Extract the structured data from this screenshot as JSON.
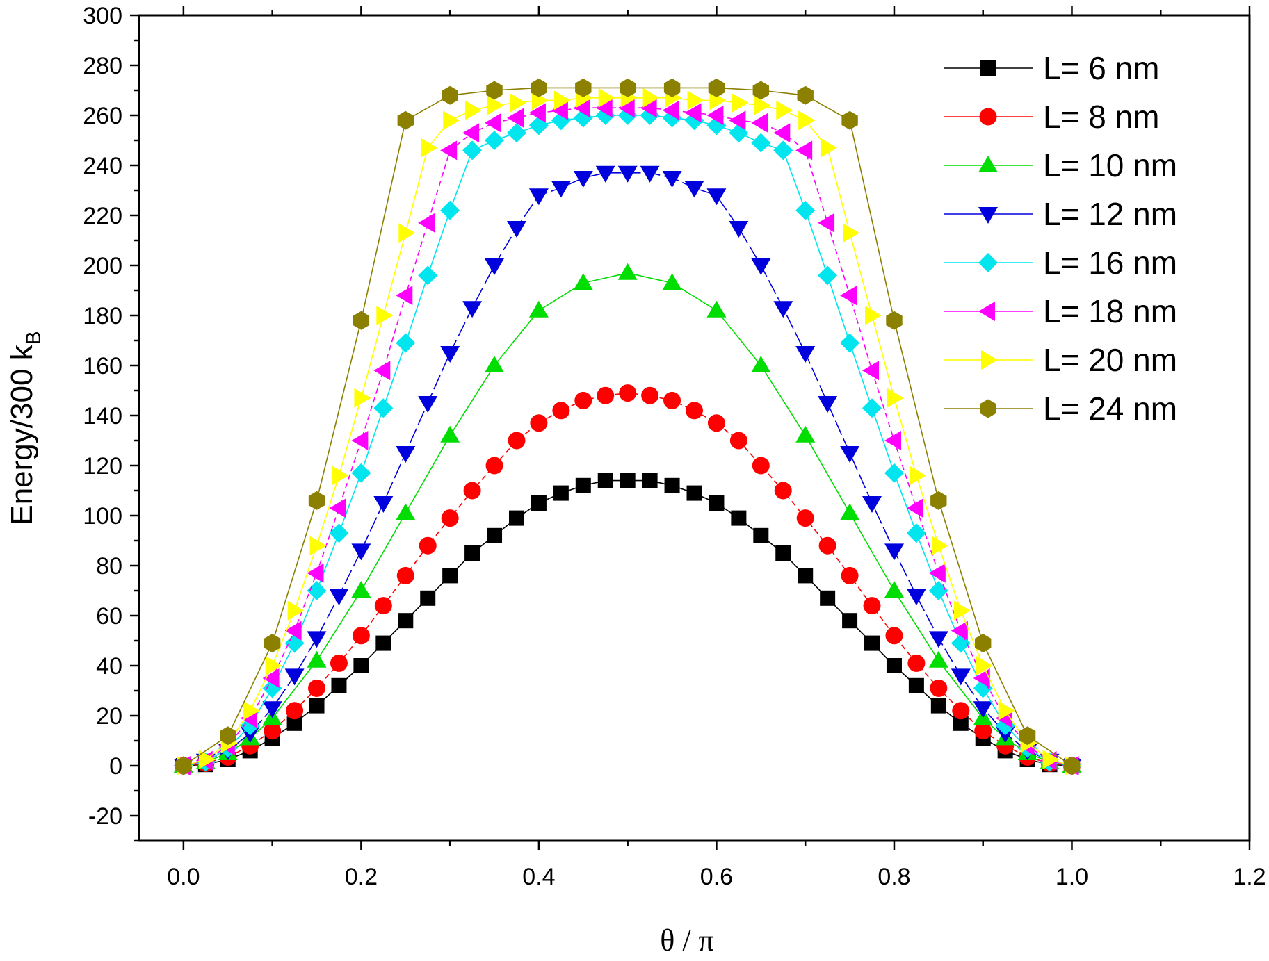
{
  "chart_data": {
    "type": "line",
    "title": "",
    "xlabel": "θ / π",
    "ylabel": "Energy/300 k",
    "ylabel_subscript": "B",
    "xlim": [
      -0.05,
      1.2
    ],
    "ylim": [
      -30,
      300
    ],
    "xticks": [
      "0.0",
      "0.2",
      "0.4",
      "0.6",
      "0.8",
      "1.0",
      "1.2"
    ],
    "yticks": [
      "-20",
      "0",
      "20",
      "40",
      "60",
      "80",
      "100",
      "120",
      "140",
      "160",
      "180",
      "200",
      "220",
      "240",
      "260",
      "280",
      "300"
    ],
    "legend_position": "top-right",
    "series": [
      {
        "name": "L= 6 nm",
        "color": "#000000",
        "marker": "square",
        "dash": "",
        "x": [
          0,
          0.025,
          0.05,
          0.075,
          0.1,
          0.125,
          0.15,
          0.175,
          0.2,
          0.225,
          0.25,
          0.275,
          0.3,
          0.325,
          0.35,
          0.375,
          0.4,
          0.425,
          0.45,
          0.475,
          0.5,
          0.525,
          0.55,
          0.575,
          0.6,
          0.625,
          0.65,
          0.675,
          0.7,
          0.725,
          0.75,
          0.775,
          0.8,
          0.825,
          0.85,
          0.875,
          0.9,
          0.925,
          0.95,
          0.975,
          1.0
        ],
        "y": [
          0,
          0.5,
          2.5,
          6,
          11,
          17,
          24,
          32,
          40,
          49,
          58,
          67,
          76,
          85,
          92,
          99,
          105,
          109,
          112,
          114,
          114,
          114,
          112,
          109,
          105,
          99,
          92,
          85,
          76,
          67,
          58,
          49,
          40,
          32,
          24,
          17,
          11,
          6,
          2.5,
          0.5,
          0
        ]
      },
      {
        "name": "L= 8 nm",
        "color": "#ff0000",
        "marker": "circle",
        "dash": "8,5",
        "x": [
          0,
          0.025,
          0.05,
          0.075,
          0.1,
          0.125,
          0.15,
          0.175,
          0.2,
          0.225,
          0.25,
          0.275,
          0.3,
          0.325,
          0.35,
          0.375,
          0.4,
          0.425,
          0.45,
          0.475,
          0.5,
          0.525,
          0.55,
          0.575,
          0.6,
          0.625,
          0.65,
          0.675,
          0.7,
          0.725,
          0.75,
          0.775,
          0.8,
          0.825,
          0.85,
          0.875,
          0.9,
          0.925,
          0.95,
          0.975,
          1.0
        ],
        "y": [
          0,
          1,
          3.5,
          8,
          14,
          22,
          31,
          41,
          52,
          64,
          76,
          88,
          99,
          110,
          120,
          130,
          137,
          142,
          146,
          148,
          149,
          148,
          146,
          142,
          137,
          130,
          120,
          110,
          99,
          88,
          76,
          64,
          52,
          41,
          31,
          22,
          14,
          8,
          3.5,
          1,
          0
        ]
      },
      {
        "name": "L= 10 nm",
        "color": "#00dd00",
        "marker": "triangle-up",
        "dash": "",
        "x": [
          0,
          0.025,
          0.05,
          0.075,
          0.1,
          0.15,
          0.2,
          0.25,
          0.3,
          0.35,
          0.4,
          0.45,
          0.5,
          0.55,
          0.6,
          0.65,
          0.7,
          0.75,
          0.8,
          0.85,
          0.9,
          0.925,
          0.95,
          0.975,
          1.0
        ],
        "y": [
          0,
          1.5,
          5,
          11,
          19,
          42,
          70,
          101,
          132,
          160,
          182,
          193,
          197,
          193,
          182,
          160,
          132,
          101,
          70,
          42,
          19,
          11,
          5,
          1.5,
          0
        ]
      },
      {
        "name": "L= 12 nm",
        "color": "#0000dd",
        "marker": "triangle-down",
        "dash": "22,6",
        "x": [
          0,
          0.025,
          0.05,
          0.075,
          0.1,
          0.125,
          0.15,
          0.175,
          0.2,
          0.225,
          0.25,
          0.275,
          0.3,
          0.325,
          0.35,
          0.375,
          0.4,
          0.425,
          0.45,
          0.475,
          0.5,
          0.525,
          0.55,
          0.575,
          0.6,
          0.625,
          0.65,
          0.675,
          0.7,
          0.725,
          0.75,
          0.775,
          0.8,
          0.825,
          0.85,
          0.875,
          0.9,
          0.925,
          0.95,
          0.975,
          1.0
        ],
        "y": [
          0,
          2,
          6,
          13,
          23,
          36,
          51,
          68,
          86,
          105,
          125,
          145,
          165,
          183,
          200,
          215,
          228,
          231,
          235,
          237,
          237,
          237,
          235,
          231,
          228,
          215,
          200,
          183,
          165,
          145,
          125,
          105,
          86,
          68,
          51,
          36,
          23,
          13,
          6,
          2,
          0
        ]
      },
      {
        "name": "L= 16 nm",
        "color": "#00e5ee",
        "marker": "diamond",
        "dash": "",
        "x": [
          0,
          0.025,
          0.05,
          0.075,
          0.1,
          0.125,
          0.15,
          0.175,
          0.2,
          0.225,
          0.25,
          0.275,
          0.3,
          0.325,
          0.35,
          0.375,
          0.4,
          0.425,
          0.45,
          0.475,
          0.5,
          0.525,
          0.55,
          0.575,
          0.6,
          0.625,
          0.65,
          0.675,
          0.7,
          0.725,
          0.75,
          0.775,
          0.8,
          0.825,
          0.85,
          0.875,
          0.9,
          0.925,
          0.95,
          0.975,
          1.0
        ],
        "y": [
          0,
          1.5,
          7,
          16,
          31,
          49,
          70,
          93,
          117,
          143,
          169,
          196,
          222,
          246,
          250,
          253,
          256,
          258,
          259,
          260,
          260,
          260,
          259,
          258,
          256,
          253,
          249,
          246,
          222,
          196,
          169,
          143,
          117,
          93,
          70,
          49,
          31,
          16,
          7,
          1.5,
          0
        ]
      },
      {
        "name": "L= 18 nm",
        "color": "#ff00ff",
        "marker": "triangle-left",
        "dash": "8,5",
        "x": [
          0,
          0.025,
          0.05,
          0.075,
          0.1,
          0.125,
          0.15,
          0.175,
          0.2,
          0.225,
          0.25,
          0.275,
          0.3,
          0.325,
          0.35,
          0.375,
          0.4,
          0.425,
          0.45,
          0.475,
          0.5,
          0.525,
          0.55,
          0.575,
          0.6,
          0.625,
          0.65,
          0.675,
          0.7,
          0.725,
          0.75,
          0.775,
          0.8,
          0.825,
          0.85,
          0.875,
          0.9,
          0.925,
          0.95,
          0.975,
          1.0
        ],
        "y": [
          0,
          2,
          8,
          19,
          35,
          54,
          77,
          103,
          130,
          158,
          188,
          217,
          246,
          253,
          257,
          259,
          261,
          262,
          263,
          263,
          263,
          263,
          262,
          261,
          260,
          258,
          257,
          253,
          246,
          217,
          188,
          158,
          130,
          103,
          77,
          54,
          35,
          19,
          8,
          2,
          0
        ]
      },
      {
        "name": "L= 20 nm",
        "color": "#ffff00",
        "marker": "triangle-right",
        "dash": "",
        "x": [
          0,
          0.025,
          0.05,
          0.075,
          0.1,
          0.125,
          0.15,
          0.175,
          0.2,
          0.225,
          0.25,
          0.275,
          0.3,
          0.325,
          0.35,
          0.375,
          0.4,
          0.425,
          0.45,
          0.475,
          0.5,
          0.525,
          0.55,
          0.575,
          0.6,
          0.625,
          0.65,
          0.675,
          0.7,
          0.725,
          0.75,
          0.775,
          0.8,
          0.825,
          0.85,
          0.875,
          0.9,
          0.925,
          0.95,
          0.975,
          1.0
        ],
        "y": [
          0,
          2.5,
          9,
          22,
          40,
          62,
          88,
          116,
          147,
          180,
          213,
          247,
          258,
          262,
          264,
          265,
          266,
          266,
          267,
          267,
          267,
          267,
          267,
          266,
          266,
          265,
          264,
          262,
          258,
          247,
          213,
          180,
          147,
          116,
          88,
          62,
          40,
          22,
          9,
          2.5,
          0
        ]
      },
      {
        "name": "L= 24 nm",
        "color": "#8b8000",
        "marker": "hexagon",
        "dash": "",
        "x": [
          0,
          0.05,
          0.1,
          0.15,
          0.2,
          0.25,
          0.3,
          0.35,
          0.4,
          0.45,
          0.5,
          0.55,
          0.6,
          0.65,
          0.7,
          0.75,
          0.8,
          0.85,
          0.9,
          0.95,
          1.0
        ],
        "y": [
          0,
          12,
          49,
          106,
          178,
          258,
          268,
          270,
          271,
          271,
          271,
          271,
          271,
          270,
          268,
          258,
          178,
          106,
          49,
          12,
          0
        ]
      }
    ]
  }
}
